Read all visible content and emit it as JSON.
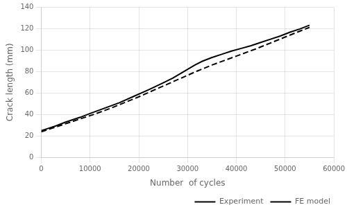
{
  "chart_data": {
    "type": "line",
    "xlabel": "Number  of cycles",
    "ylabel": "Crack length (mm)",
    "series": [
      {
        "name": "Experiment",
        "color": "#000000",
        "line_style": "solid",
        "x": [
          0,
          1000,
          3000,
          5000,
          8000,
          10000,
          13000,
          16000,
          19000,
          22000,
          25000,
          27000,
          28500,
          30000,
          31500,
          33000,
          35000,
          37000,
          39000,
          41000,
          43000,
          45000,
          47000,
          49000,
          51000,
          53000,
          55000
        ],
        "values": [
          25,
          26.5,
          29.5,
          33,
          37.5,
          41,
          46,
          51,
          57,
          63,
          69.5,
          74,
          78,
          82,
          86,
          89.5,
          93,
          96,
          99,
          101.5,
          104,
          107,
          110,
          113,
          116.5,
          119.5,
          123
        ]
      },
      {
        "name": "FE model",
        "color": "#000000",
        "line_style": "dashed",
        "x": [
          0,
          2000,
          5000,
          8000,
          11000,
          14000,
          17000,
          20000,
          23000,
          26000,
          29000,
          32000,
          35000,
          38000,
          41000,
          44000,
          47000,
          50000,
          53000,
          55000
        ],
        "values": [
          24,
          27,
          31.5,
          36,
          40.5,
          45.5,
          51,
          56.5,
          62.5,
          68.5,
          74.5,
          80.5,
          86,
          91,
          96,
          101,
          106.5,
          112,
          117.5,
          121
        ]
      }
    ],
    "xlim": [
      0,
      60000
    ],
    "ylim": [
      0,
      140
    ],
    "xticks": [
      0,
      10000,
      20000,
      30000,
      40000,
      50000,
      60000
    ],
    "yticks": [
      0,
      20,
      40,
      60,
      80,
      100,
      120,
      140
    ],
    "grid": true,
    "legend": "lower right"
  }
}
